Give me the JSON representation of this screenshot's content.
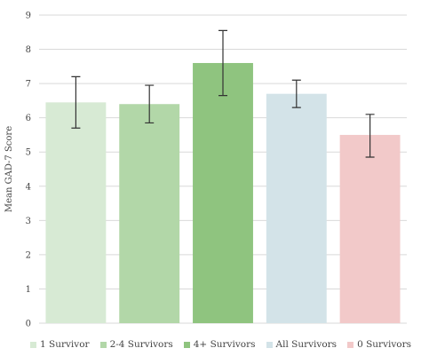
{
  "chart_data": {
    "type": "bar",
    "title": "",
    "xlabel": "",
    "ylabel": "Mean GAD-7 Score",
    "ylim": [
      0,
      9
    ],
    "yticks": [
      0,
      1,
      2,
      3,
      4,
      5,
      6,
      7,
      8,
      9
    ],
    "grid": true,
    "legend_position": "bottom",
    "series": [
      {
        "name": "1 Survivor",
        "value": 6.45,
        "error_low": 5.7,
        "error_high": 7.2,
        "color": "#d7ead4"
      },
      {
        "name": "2-4 Survivors",
        "value": 6.4,
        "error_low": 5.85,
        "error_high": 6.95,
        "color": "#b2d7a8"
      },
      {
        "name": "4+ Survivors",
        "value": 7.6,
        "error_low": 6.65,
        "error_high": 8.55,
        "color": "#8fc47f"
      },
      {
        "name": "All Survivors",
        "value": 6.7,
        "error_low": 6.3,
        "error_high": 7.1,
        "color": "#d3e3e8"
      },
      {
        "name": "0 Survivors",
        "value": 5.5,
        "error_low": 4.85,
        "error_high": 6.1,
        "color": "#f2c9c9"
      }
    ]
  }
}
